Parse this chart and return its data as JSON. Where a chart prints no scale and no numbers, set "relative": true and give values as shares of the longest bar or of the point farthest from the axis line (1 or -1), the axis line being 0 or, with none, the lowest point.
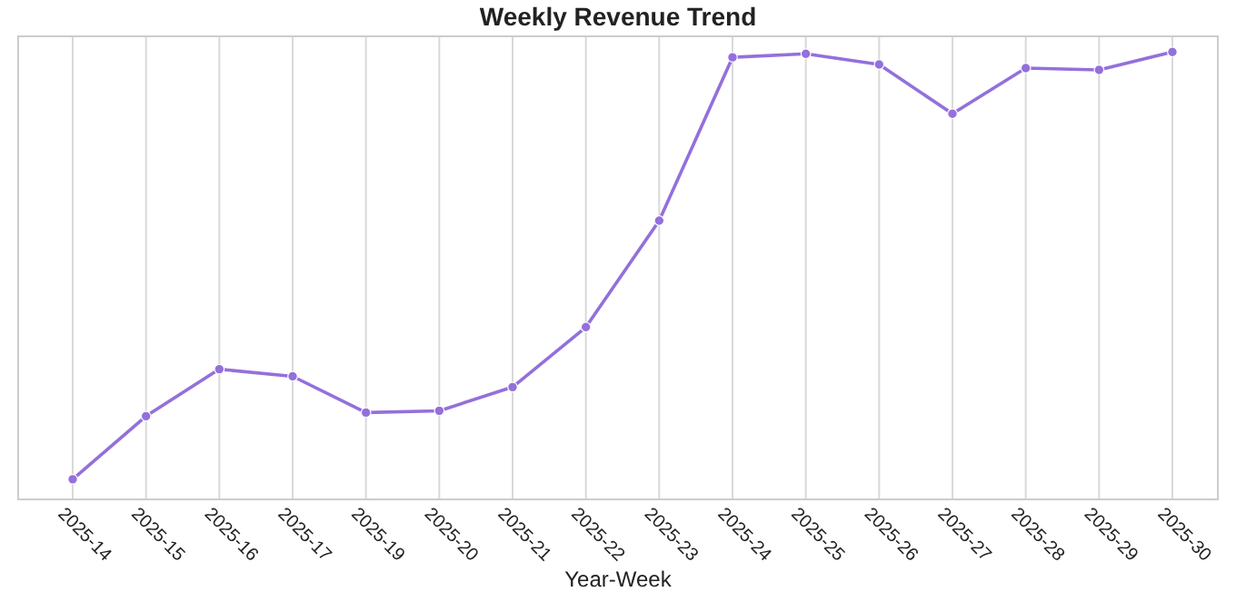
{
  "chart_data": {
    "type": "line",
    "title": "Weekly Revenue Trend",
    "xlabel": "Year-Week",
    "categories": [
      "2025-14",
      "2025-15",
      "2025-16",
      "2025-17",
      "2025-19",
      "2025-20",
      "2025-21",
      "2025-22",
      "2025-23",
      "2025-24",
      "2025-25",
      "2025-26",
      "2025-27",
      "2025-28",
      "2025-29",
      "2025-30"
    ],
    "relative": true,
    "series": [
      {
        "color": "#9370db",
        "values": [
          0.045,
          0.186,
          0.291,
          0.275,
          0.194,
          0.198,
          0.251,
          0.385,
          0.623,
          0.988,
          0.996,
          0.972,
          0.862,
          0.964,
          0.96,
          1
        ]
      }
    ],
    "grid": "x",
    "marker": "circle",
    "line_style": "solid"
  }
}
